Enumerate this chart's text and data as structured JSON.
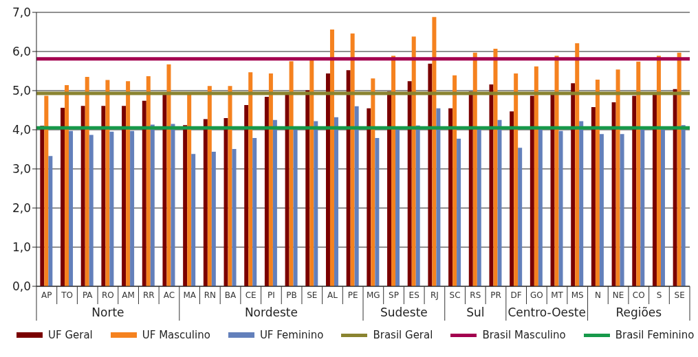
{
  "chart_data": {
    "type": "bar",
    "categories": [
      "AP",
      "TO",
      "PA",
      "RO",
      "AM",
      "RR",
      "AC",
      "MA",
      "RN",
      "BA",
      "CE",
      "PI",
      "PB",
      "SE",
      "AL",
      "PE",
      "MG",
      "SP",
      "ES",
      "RJ",
      "SC",
      "RS",
      "PR",
      "DF",
      "GO",
      "MT",
      "MS",
      "N",
      "NE",
      "CO",
      "S",
      "SE"
    ],
    "series": [
      {
        "name": "UF Geral",
        "color": "#7a0000",
        "values": [
          4.1,
          4.56,
          4.61,
          4.61,
          4.61,
          4.74,
          4.9,
          4.12,
          4.27,
          4.3,
          4.63,
          4.84,
          4.93,
          5.01,
          5.44,
          5.52,
          4.55,
          4.98,
          5.24,
          5.69,
          4.55,
          4.98,
          5.16,
          4.47,
          4.87,
          4.9,
          5.19,
          4.58,
          4.7,
          4.87,
          4.93,
          5.04
        ]
      },
      {
        "name": "UF Masculino",
        "color": "#f5821f",
        "values": [
          4.87,
          5.14,
          5.35,
          5.27,
          5.24,
          5.37,
          5.67,
          4.93,
          5.12,
          5.12,
          5.47,
          5.44,
          5.75,
          5.79,
          6.56,
          6.46,
          5.31,
          5.89,
          6.38,
          6.88,
          5.39,
          5.97,
          6.07,
          5.44,
          5.62,
          5.89,
          6.21,
          5.28,
          5.54,
          5.74,
          5.89,
          5.97
        ]
      },
      {
        "name": "UF Feminino",
        "color": "#6380bb",
        "values": [
          3.33,
          3.97,
          3.87,
          3.95,
          3.97,
          4.13,
          4.15,
          3.38,
          3.44,
          3.51,
          3.79,
          4.25,
          4.05,
          4.22,
          4.32,
          4.6,
          3.79,
          4.05,
          4.11,
          4.55,
          3.77,
          4.05,
          4.25,
          3.54,
          4.05,
          3.97,
          4.22,
          3.89,
          3.89,
          4.05,
          4.05,
          4.12
        ]
      }
    ],
    "ref_lines": [
      {
        "axis": "y",
        "value": 4.93,
        "label": "Brasil Geral",
        "color": "#8a8430"
      },
      {
        "axis": "y",
        "value": 5.81,
        "label": "Brasil Masculino",
        "color": "#a3004f"
      },
      {
        "axis": "y",
        "value": 4.05,
        "label": "Brasil Feminino",
        "color": "#17994a"
      }
    ],
    "annotations": [
      "Norte",
      "Nordeste",
      "Sudeste",
      "Sul",
      "Centro-Oeste",
      "Regiões"
    ],
    "ylim": [
      0,
      7
    ],
    "yticks": [
      {
        "value": 0,
        "label": "0,0"
      },
      {
        "value": 1,
        "label": "1,0"
      },
      {
        "value": 2,
        "label": "2,0"
      },
      {
        "value": 3,
        "label": "3,0"
      },
      {
        "value": 4,
        "label": "4,0"
      },
      {
        "value": 5,
        "label": "5,0"
      },
      {
        "value": 6,
        "label": "6,0"
      },
      {
        "value": 7,
        "label": "7,0"
      }
    ],
    "grid": "y",
    "legend": "bottom"
  }
}
